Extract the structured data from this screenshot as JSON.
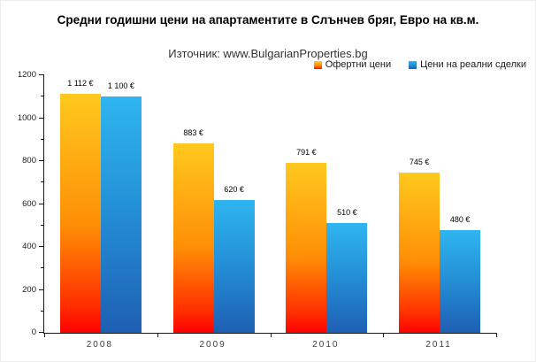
{
  "title": "Средни годишни цени на апартаментите в Слънчев бряг, Евро на кв.м.",
  "source": "Източник: www.BulgarianProperties.bg",
  "chart_data": {
    "type": "bar",
    "title": "Средни годишни цени на апартаментите в Слънчев бряг, Евро на кв.м.",
    "subtitle": "Източник: www.BulgarianProperties.bg",
    "categories": [
      "2008",
      "2009",
      "2010",
      "2011"
    ],
    "series": [
      {
        "key": "offer",
        "name": "Офертни цени",
        "values": [
          1112,
          883,
          791,
          745
        ],
        "labels": [
          "1 112 €",
          "883 €",
          "791 €",
          "745 €"
        ]
      },
      {
        "key": "deals",
        "name": "Цени на реални сделки",
        "values": [
          1100,
          620,
          510,
          480
        ],
        "labels": [
          "1 100 €",
          "620 €",
          "510 €",
          "480 €"
        ]
      }
    ],
    "xlabel": "",
    "ylabel": "",
    "ylim": [
      0,
      1200
    ],
    "y_ticks": [
      0,
      200,
      400,
      600,
      800,
      1000,
      1200
    ],
    "minor_tick_step": 100,
    "grid": false,
    "legend_position": "top-right"
  },
  "colors": {
    "offer_top": "#FFC91E",
    "offer_mid": "#FF8F06",
    "offer_deep": "#FF3000",
    "offer_bottom": "#FF0000",
    "deals_top": "#2FB5F0",
    "deals_mid": "#2492D8",
    "deals_bottom": "#1E5FB4",
    "axis": "#1a1a1a",
    "text": "#000000",
    "subtitle_text": "#333333"
  }
}
